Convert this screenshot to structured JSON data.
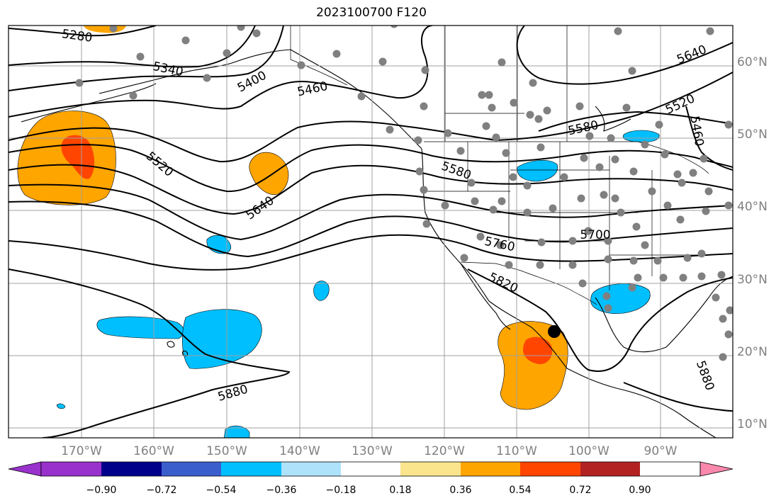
{
  "title": "2023100700 F120",
  "map": {
    "lon_labels": [
      "170°W",
      "160°W",
      "150°W",
      "140°W",
      "130°W",
      "120°W",
      "110°W",
      "100°W",
      "90°W"
    ],
    "lat_labels": [
      "10°N",
      "20°N",
      "30°N",
      "40°N",
      "50°N",
      "60°N"
    ],
    "contour_labels": [
      "5280",
      "5340",
      "5400",
      "5460",
      "5520",
      "5580",
      "5640",
      "5700",
      "5760",
      "5820",
      "5880",
      "5880",
      "5460",
      "5520",
      "5580",
      "5640"
    ],
    "colors": {
      "cool_light": "#aee2fa",
      "cool": "#00bfff",
      "cool_mid": "#3a5fcd",
      "cool_dark": "#00008b",
      "violet": "#9932cc",
      "warm_light": "#fbe58c",
      "warm": "#ffa500",
      "warm_mid": "#ff4500",
      "warm_dark": "#b22222",
      "pink": "#fa88ad",
      "station": "#808080",
      "marker": "#000000"
    }
  },
  "colorbar": {
    "tick_labels": [
      "−0.90",
      "−0.72",
      "−0.54",
      "−0.36",
      "−0.18",
      "0.18",
      "0.36",
      "0.54",
      "0.72",
      "0.90"
    ],
    "bins": [
      "#9932cc",
      "#00008b",
      "#3a5fcd",
      "#00bfff",
      "#aee2fa",
      "#ffffff",
      "#fbe58c",
      "#ffa500",
      "#ff4500",
      "#b22222",
      "#fa88ad"
    ]
  }
}
